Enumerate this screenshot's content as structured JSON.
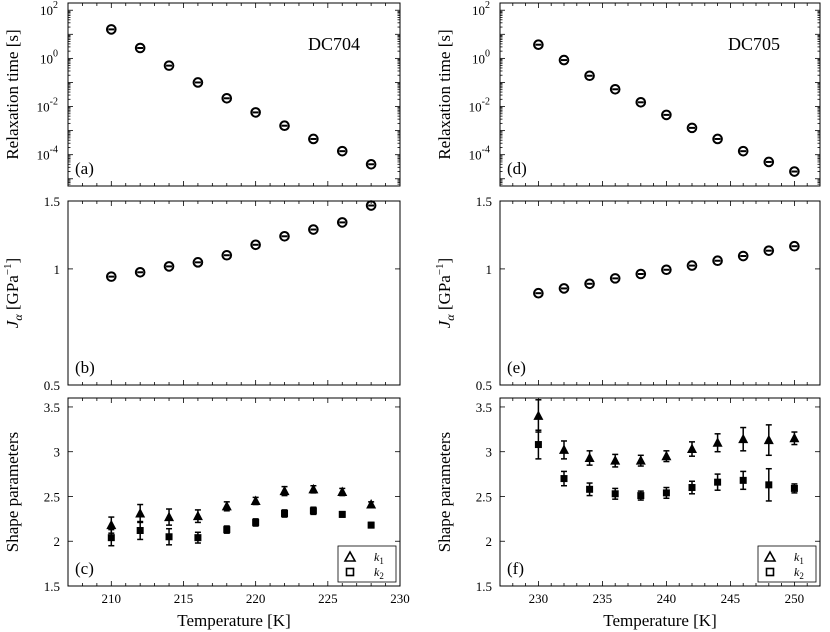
{
  "chart_data": [
    {
      "id": "a",
      "type": "scatter",
      "scale": "log",
      "panel_label": "(a)",
      "title": "DC704",
      "ylabel": "Relaxation time [s]",
      "xlim": [
        207,
        230
      ],
      "ylim_exp": [
        -5.3,
        2.3
      ],
      "yticks_exp": [
        -4,
        -2,
        0,
        2
      ],
      "x": [
        210,
        212,
        214,
        216,
        218,
        220,
        222,
        224,
        226,
        228
      ],
      "y": [
        16,
        2.7,
        0.5,
        0.1,
        0.022,
        0.0057,
        0.0016,
        0.00045,
        0.00014,
        4e-05
      ]
    },
    {
      "id": "b",
      "type": "scatter",
      "scale": "log",
      "panel_label": "(b)",
      "ylabel_main": "J",
      "ylabel_sub": "α",
      "ylabel_unit": " [GPa",
      "ylabel_exp": "−1",
      "ylabel_close": "]",
      "xlim": [
        207,
        230
      ],
      "ylim": [
        0.5,
        1.5
      ],
      "yticks": [
        0.5,
        1,
        1.5
      ],
      "x": [
        210,
        212,
        214,
        216,
        218,
        220,
        222,
        224,
        226,
        228
      ],
      "y": [
        0.955,
        0.98,
        1.015,
        1.04,
        1.085,
        1.155,
        1.215,
        1.265,
        1.32,
        1.46
      ]
    },
    {
      "id": "c",
      "type": "scatter",
      "scale": "linear",
      "panel_label": "(c)",
      "ylabel": "Shape parameters",
      "xlim": [
        207,
        230
      ],
      "ylim": [
        1.5,
        3.6
      ],
      "yticks": [
        1.5,
        2,
        2.5,
        3,
        3.5
      ],
      "xticks": [
        210,
        215,
        220,
        225,
        230
      ],
      "xlabel": "Temperature [K]",
      "series": [
        {
          "name": "k1",
          "label_base": "k",
          "label_sub": "1",
          "marker": "triangle",
          "x": [
            210,
            212,
            214,
            216,
            218,
            220,
            222,
            224,
            226,
            228
          ],
          "y": [
            2.18,
            2.31,
            2.27,
            2.28,
            2.39,
            2.45,
            2.56,
            2.58,
            2.55,
            2.41
          ],
          "err": [
            0.09,
            0.1,
            0.09,
            0.07,
            0.05,
            0.04,
            0.05,
            0.04,
            0.04,
            0.03
          ]
        },
        {
          "name": "k2",
          "label_base": "k",
          "label_sub": "2",
          "marker": "square",
          "x": [
            210,
            212,
            214,
            216,
            218,
            220,
            222,
            224,
            226,
            228
          ],
          "y": [
            2.04,
            2.12,
            2.05,
            2.04,
            2.13,
            2.21,
            2.31,
            2.34,
            2.3,
            2.18
          ],
          "err": [
            0.09,
            0.1,
            0.09,
            0.06,
            0.04,
            0.04,
            0.04,
            0.04,
            0.03,
            0.03
          ]
        }
      ]
    },
    {
      "id": "d",
      "type": "scatter",
      "scale": "log",
      "panel_label": "(d)",
      "title": "DC705",
      "ylabel": "Relaxation time [s]",
      "xlim": [
        227,
        252
      ],
      "ylim_exp": [
        -5.3,
        2.3
      ],
      "yticks_exp": [
        -4,
        -2,
        0,
        2
      ],
      "x": [
        230,
        232,
        234,
        236,
        238,
        240,
        242,
        244,
        246,
        248,
        250
      ],
      "y": [
        3.7,
        0.85,
        0.19,
        0.052,
        0.015,
        0.0045,
        0.0013,
        0.00045,
        0.00014,
        5e-05,
        2e-05
      ]
    },
    {
      "id": "e",
      "type": "scatter",
      "scale": "log",
      "panel_label": "(e)",
      "ylabel_main": "J",
      "ylabel_sub": "α",
      "ylabel_unit": " [GPa",
      "ylabel_exp": "−1",
      "ylabel_close": "]",
      "xlim": [
        227,
        252
      ],
      "ylim": [
        0.5,
        1.5
      ],
      "yticks": [
        0.5,
        1,
        1.5
      ],
      "x": [
        230,
        232,
        234,
        236,
        238,
        240,
        242,
        244,
        246,
        248,
        250
      ],
      "y": [
        0.865,
        0.89,
        0.915,
        0.945,
        0.97,
        0.995,
        1.02,
        1.05,
        1.08,
        1.115,
        1.145
      ]
    },
    {
      "id": "f",
      "type": "scatter",
      "scale": "linear",
      "panel_label": "(f)",
      "ylabel": "Shape parameters",
      "xlim": [
        227,
        252
      ],
      "ylim": [
        1.5,
        3.6
      ],
      "yticks": [
        1.5,
        2,
        2.5,
        3,
        3.5
      ],
      "xticks": [
        230,
        235,
        240,
        245,
        250
      ],
      "xlabel": "Temperature [K]",
      "series": [
        {
          "name": "k1",
          "label_base": "k",
          "label_sub": "1",
          "marker": "triangle",
          "x": [
            230,
            232,
            234,
            236,
            238,
            240,
            242,
            244,
            246,
            248,
            250
          ],
          "y": [
            3.4,
            3.02,
            2.93,
            2.9,
            2.9,
            2.95,
            3.03,
            3.1,
            3.14,
            3.13,
            3.15
          ],
          "err": [
            0.18,
            0.1,
            0.08,
            0.07,
            0.06,
            0.06,
            0.08,
            0.1,
            0.13,
            0.17,
            0.07
          ]
        },
        {
          "name": "k2",
          "label_base": "k",
          "label_sub": "2",
          "marker": "square",
          "x": [
            230,
            232,
            234,
            236,
            238,
            240,
            242,
            244,
            246,
            248,
            250
          ],
          "y": [
            3.08,
            2.7,
            2.58,
            2.53,
            2.51,
            2.54,
            2.6,
            2.66,
            2.68,
            2.63,
            2.59
          ],
          "err": [
            0.16,
            0.08,
            0.07,
            0.06,
            0.05,
            0.06,
            0.07,
            0.09,
            0.1,
            0.18,
            0.05
          ]
        }
      ]
    }
  ]
}
